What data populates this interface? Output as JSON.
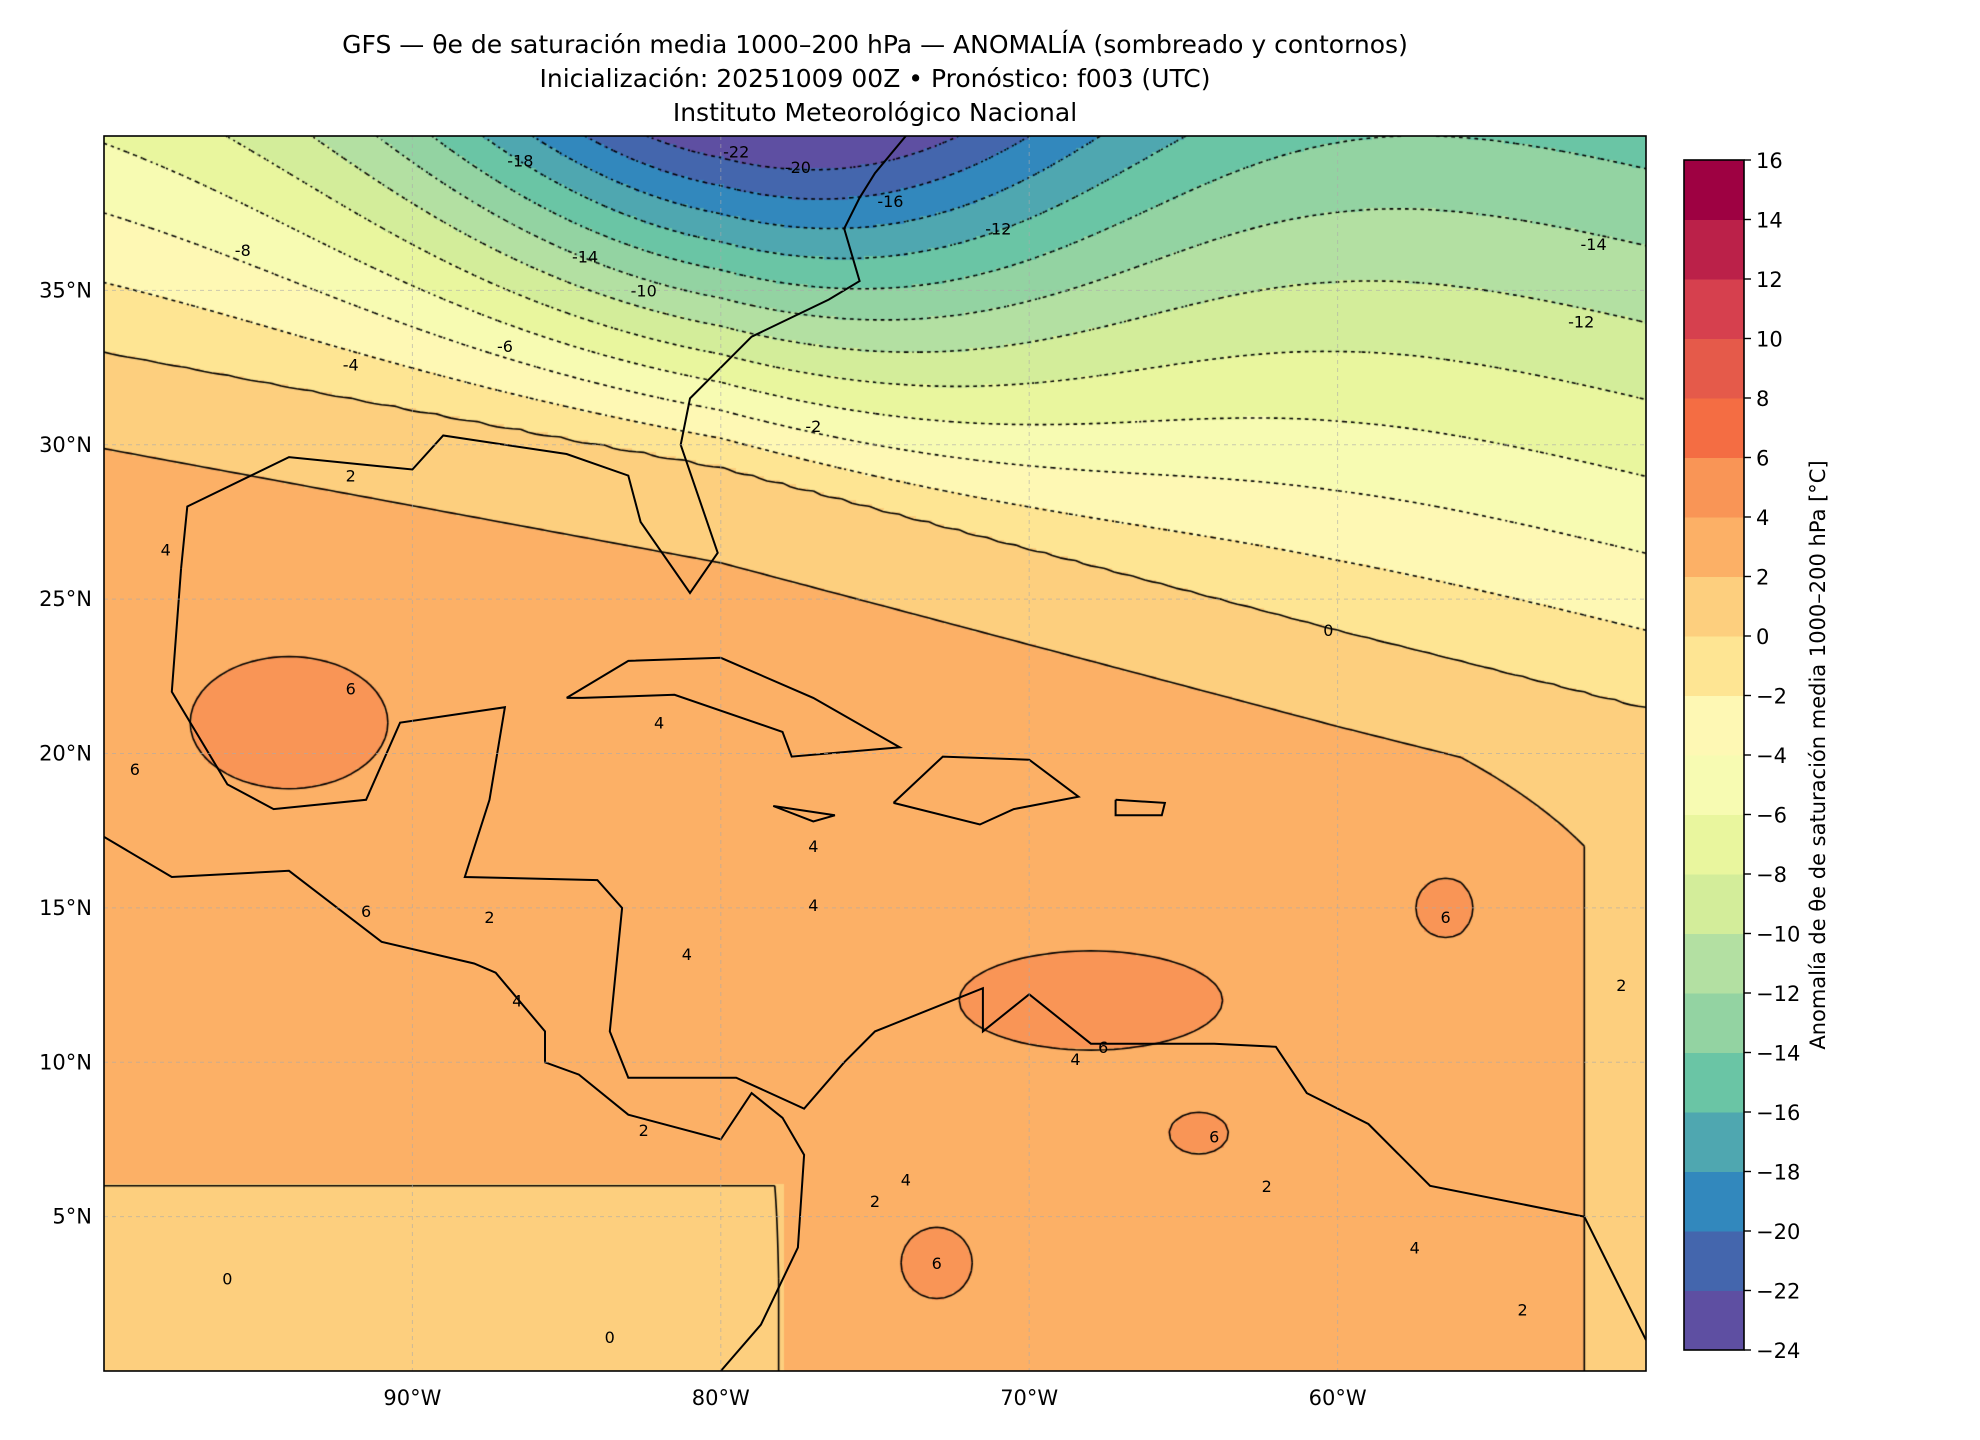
{
  "chart_data": {
    "type": "heatmap",
    "title": "GFS — θe de saturación media 1000–200 hPa — ANOMALÍA (sombreado y contornos)",
    "subtitle": "Inicialización: 20251009 00Z   •   Pronóstico: f003 (UTC)",
    "institution": "Instituto Meteorológico Nacional",
    "colorbar_label": "Anomalía de θe de saturación media 1000–200 hPa [°C]",
    "xlim": [
      -100,
      -50
    ],
    "ylim": [
      0,
      40
    ],
    "grid": true,
    "x_ticks": [
      {
        "value": -90,
        "label": "90°W"
      },
      {
        "value": -80,
        "label": "80°W"
      },
      {
        "value": -70,
        "label": "70°W"
      },
      {
        "value": -60,
        "label": "60°W"
      }
    ],
    "y_ticks": [
      {
        "value": 35,
        "label": "35°N"
      },
      {
        "value": 30,
        "label": "30°N"
      },
      {
        "value": 25,
        "label": "25°N"
      },
      {
        "value": 20,
        "label": "20°N"
      },
      {
        "value": 15,
        "label": "15°N"
      },
      {
        "value": 10,
        "label": "10°N"
      },
      {
        "value": 5,
        "label": "5°N"
      }
    ],
    "levels": [
      -24,
      -22,
      -20,
      -18,
      -16,
      -14,
      -12,
      -10,
      -8,
      -6,
      -4,
      -2,
      0,
      2,
      4,
      6,
      8,
      10,
      12,
      14,
      16
    ],
    "level_labels": [
      "−24",
      "−22",
      "−20",
      "−18",
      "−16",
      "−14",
      "−12",
      "−10",
      "−8",
      "−6",
      "−4",
      "−2",
      "0",
      "2",
      "4",
      "6",
      "8",
      "10",
      "12",
      "14",
      "16"
    ],
    "colors": [
      "#5e4fa2",
      "#4466ad",
      "#3288bd",
      "#4fa7b0",
      "#6ac5a5",
      "#93d3a2",
      "#b3e0a2",
      "#d3ed9a",
      "#e9f69e",
      "#f7fbb2",
      "#fef8b4",
      "#fee593",
      "#fdcf7e",
      "#fcb066",
      "#f99556",
      "#f46d43",
      "#e55a4a",
      "#d6404e",
      "#bb2149",
      "#9e0142"
    ],
    "contour_levels": [
      -22,
      -20,
      -18,
      -16,
      -14,
      -12,
      -10,
      -8,
      -6,
      -4,
      -2,
      0,
      2,
      4,
      6
    ],
    "contour_labels": [
      {
        "text": "-18",
        "lon": -86.5,
        "lat": 39.2
      },
      {
        "text": "-22",
        "lon": -79.5,
        "lat": 39.5
      },
      {
        "text": "-20",
        "lon": -77.5,
        "lat": 39.0
      },
      {
        "text": "-16",
        "lon": -74.5,
        "lat": 37.9
      },
      {
        "text": "-12",
        "lon": -71.0,
        "lat": 37.0
      },
      {
        "text": "-14",
        "lon": -84.4,
        "lat": 36.1
      },
      {
        "text": "-8",
        "lon": -95.5,
        "lat": 36.3
      },
      {
        "text": "-10",
        "lon": -82.5,
        "lat": 35.0
      },
      {
        "text": "-6",
        "lon": -87.0,
        "lat": 33.2
      },
      {
        "text": "-4",
        "lon": -92.0,
        "lat": 32.6
      },
      {
        "text": "-2",
        "lon": -77.0,
        "lat": 30.6
      },
      {
        "text": "-14",
        "lon": -51.7,
        "lat": 36.5
      },
      {
        "text": "-12",
        "lon": -52.1,
        "lat": 34.0
      },
      {
        "text": "0",
        "lon": -60.3,
        "lat": 24.0
      },
      {
        "text": "2",
        "lon": -92.0,
        "lat": 29.0
      },
      {
        "text": "4",
        "lon": -98.0,
        "lat": 26.6
      },
      {
        "text": "6",
        "lon": -92.0,
        "lat": 22.1
      },
      {
        "text": "4",
        "lon": -82.0,
        "lat": 21.0
      },
      {
        "text": "6",
        "lon": -99.0,
        "lat": 19.5
      },
      {
        "text": "4",
        "lon": -77.0,
        "lat": 17.0
      },
      {
        "text": "4",
        "lon": -77.0,
        "lat": 15.1
      },
      {
        "text": "6",
        "lon": -91.5,
        "lat": 14.9
      },
      {
        "text": "2",
        "lon": -87.5,
        "lat": 14.7
      },
      {
        "text": "6",
        "lon": -56.5,
        "lat": 14.7
      },
      {
        "text": "4",
        "lon": -81.1,
        "lat": 13.5
      },
      {
        "text": "4",
        "lon": -86.6,
        "lat": 12.0
      },
      {
        "text": "6",
        "lon": -67.6,
        "lat": 10.5
      },
      {
        "text": "4",
        "lon": -68.5,
        "lat": 10.1
      },
      {
        "text": "6",
        "lon": -64.0,
        "lat": 7.6
      },
      {
        "text": "2",
        "lon": -82.5,
        "lat": 7.8
      },
      {
        "text": "2",
        "lon": -75.0,
        "lat": 5.5
      },
      {
        "text": "4",
        "lon": -74.0,
        "lat": 6.2
      },
      {
        "text": "2",
        "lon": -62.3,
        "lat": 6.0
      },
      {
        "text": "6",
        "lon": -73.0,
        "lat": 3.5
      },
      {
        "text": "4",
        "lon": -57.5,
        "lat": 4.0
      },
      {
        "text": "0",
        "lon": -96.0,
        "lat": 3.0
      },
      {
        "text": "2",
        "lon": -54.0,
        "lat": 2.0
      },
      {
        "text": "2",
        "lon": -50.8,
        "lat": 12.5
      },
      {
        "text": "0",
        "lon": -83.6,
        "lat": 1.1
      }
    ],
    "coastlines": [
      [
        [
          -97.5,
          26
        ],
        [
          -97.3,
          28
        ],
        [
          -94,
          29.6
        ],
        [
          -90,
          29.2
        ],
        [
          -89,
          30.3
        ],
        [
          -85,
          29.7
        ],
        [
          -83,
          29
        ],
        [
          -82.6,
          27.5
        ],
        [
          -81,
          25.2
        ],
        [
          -80.1,
          26.5
        ],
        [
          -81.3,
          30
        ],
        [
          -81,
          31.5
        ],
        [
          -79,
          33.5
        ],
        [
          -76.5,
          34.7
        ],
        [
          -75.5,
          35.3
        ],
        [
          -76,
          37
        ],
        [
          -75.5,
          38
        ],
        [
          -75,
          38.8
        ],
        [
          -74,
          40
        ]
      ],
      [
        [
          -97.5,
          26
        ],
        [
          -97.8,
          22
        ],
        [
          -96,
          19
        ],
        [
          -94.5,
          18.2
        ],
        [
          -91.5,
          18.5
        ],
        [
          -90.4,
          21
        ],
        [
          -87,
          21.5
        ],
        [
          -87.5,
          18.5
        ],
        [
          -88.3,
          16
        ],
        [
          -84,
          15.9
        ],
        [
          -83.2,
          15
        ],
        [
          -83.6,
          11
        ],
        [
          -83,
          9.5
        ],
        [
          -79.5,
          9.5
        ],
        [
          -77.3,
          8.5
        ],
        [
          -76,
          10
        ],
        [
          -75,
          11
        ],
        [
          -71.5,
          12.4
        ],
        [
          -71.5,
          11
        ],
        [
          -70,
          12.2
        ],
        [
          -68,
          10.6
        ],
        [
          -64,
          10.6
        ],
        [
          -62,
          10.5
        ],
        [
          -61,
          9
        ],
        [
          -59,
          8
        ],
        [
          -57,
          6
        ],
        [
          -52,
          5
        ],
        [
          -50,
          1
        ]
      ],
      [
        [
          -100,
          17.3
        ],
        [
          -97.8,
          16
        ],
        [
          -94,
          16.2
        ],
        [
          -91,
          13.9
        ],
        [
          -88,
          13.2
        ],
        [
          -87.3,
          12.9
        ],
        [
          -85.7,
          11
        ],
        [
          -85.7,
          10
        ],
        [
          -84.6,
          9.6
        ],
        [
          -83,
          8.3
        ],
        [
          -80,
          7.5
        ],
        [
          -79,
          9
        ],
        [
          -78,
          8.2
        ],
        [
          -77.3,
          7
        ],
        [
          -77.5,
          4
        ],
        [
          -78.7,
          1.5
        ],
        [
          -80,
          0
        ]
      ],
      [
        [
          -85,
          21.8
        ],
        [
          -83,
          23
        ],
        [
          -80,
          23.1
        ],
        [
          -77,
          21.8
        ],
        [
          -74.2,
          20.2
        ],
        [
          -77.7,
          19.9
        ],
        [
          -78,
          20.7
        ],
        [
          -81.5,
          21.9
        ],
        [
          -84.5,
          21.8
        ],
        [
          -85,
          21.8
        ]
      ],
      [
        [
          -74.4,
          18.4
        ],
        [
          -72.8,
          19.9
        ],
        [
          -70,
          19.8
        ],
        [
          -68.4,
          18.6
        ],
        [
          -70.5,
          18.2
        ],
        [
          -71.6,
          17.7
        ],
        [
          -74.4,
          18.4
        ]
      ],
      [
        [
          -78.3,
          18.3
        ],
        [
          -76.3,
          18
        ],
        [
          -77,
          17.8
        ],
        [
          -78.3,
          18.3
        ]
      ],
      [
        [
          -67.2,
          18.5
        ],
        [
          -65.6,
          18.4
        ],
        [
          -65.7,
          18
        ],
        [
          -67.2,
          18
        ],
        [
          -67.2,
          18.5
        ]
      ]
    ]
  }
}
